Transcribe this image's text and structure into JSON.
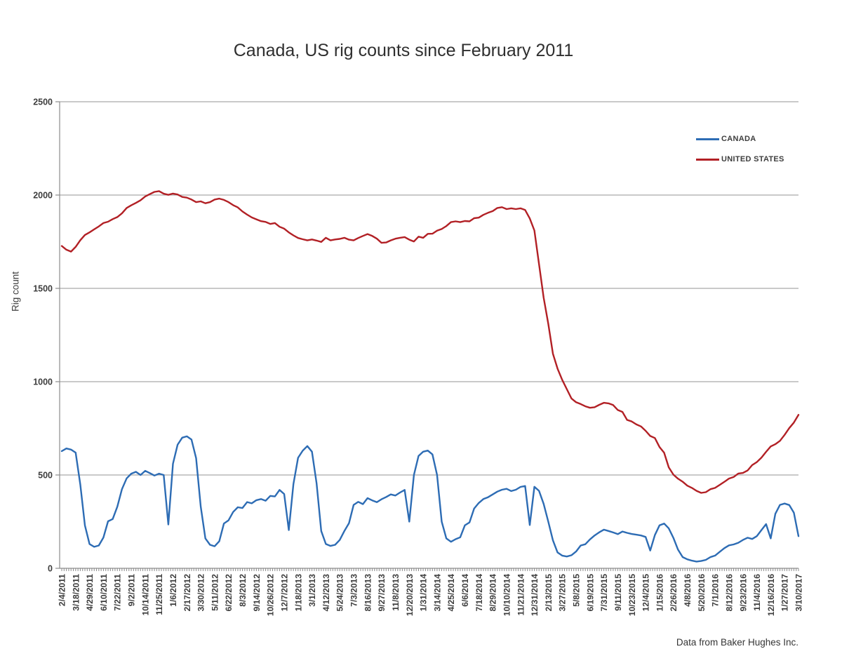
{
  "title": "Canada, US rig counts since February 2011",
  "source_note": "Data from Baker Hughes Inc.",
  "y_axis": {
    "label": "Rig count"
  },
  "legend": [
    {
      "label": "CANADA",
      "color": "#2d6cb4"
    },
    {
      "label": "UNITED STATES",
      "color": "#b22025"
    }
  ],
  "chart_data": {
    "type": "line",
    "title": "Canada, US rig counts since February 2011",
    "xlabel": "",
    "ylabel": "Rig count",
    "ylim": [
      0,
      2500
    ],
    "y_ticks": [
      0,
      500,
      1000,
      1500,
      2000,
      2500
    ],
    "grid": "horizontal",
    "legend_position": "upper right inside",
    "x_unit": "weekly rig count, sampled every 2 weeks from 2/4/2011 to 3/10/2017",
    "x_step_weeks": 2,
    "x_tick_interval_weeks": 6,
    "x_tick_labels": [
      "2/4/2011",
      "3/18/2011",
      "4/29/2011",
      "6/10/2011",
      "7/22/2011",
      "9/2/2011",
      "10/14/2011",
      "11/25/2011",
      "1/6/2012",
      "2/17/2012",
      "3/30/2012",
      "5/11/2012",
      "6/22/2012",
      "8/3/2012",
      "9/14/2012",
      "10/26/2012",
      "12/7/2012",
      "1/18/2013",
      "3/1/2013",
      "4/12/2013",
      "5/24/2013",
      "7/3/2013",
      "8/16/2013",
      "9/27/2013",
      "11/8/2013",
      "12/20/2013",
      "1/31/2014",
      "3/14/2014",
      "4/25/2014",
      "6/6/2014",
      "7/18/2014",
      "8/29/2014",
      "10/10/2014",
      "11/21/2014",
      "12/31/2014",
      "2/13/2015",
      "3/27/2015",
      "5/8/2015",
      "6/19/2015",
      "7/31/2015",
      "9/11/2015",
      "10/23/2015",
      "12/4/2015",
      "1/15/2016",
      "2/26/2016",
      "4/8/2016",
      "5/20/2016",
      "7/1/2016",
      "8/12/2016",
      "9/23/2016",
      "11/4/2016",
      "12/16/2016",
      "1/27/2017",
      "3/10/2017"
    ],
    "series": [
      {
        "name": "CANADA",
        "color": "#2d6cb4",
        "values": [
          628,
          642,
          636,
          620,
          450,
          230,
          130,
          115,
          122,
          165,
          252,
          264,
          330,
          424,
          482,
          507,
          517,
          500,
          522,
          510,
          497,
          507,
          500,
          235,
          560,
          662,
          700,
          707,
          690,
          590,
          330,
          160,
          126,
          118,
          145,
          240,
          257,
          302,
          327,
          323,
          355,
          348,
          365,
          371,
          362,
          388,
          385,
          420,
          398,
          205,
          452,
          592,
          630,
          655,
          625,
          455,
          200,
          130,
          120,
          126,
          152,
          200,
          242,
          340,
          356,
          344,
          376,
          364,
          354,
          370,
          382,
          396,
          390,
          406,
          420,
          250,
          500,
          602,
          625,
          631,
          610,
          500,
          250,
          160,
          142,
          156,
          166,
          230,
          246,
          320,
          350,
          371,
          381,
          396,
          411,
          421,
          426,
          414,
          421,
          436,
          441,
          232,
          437,
          415,
          345,
          250,
          150,
          85,
          68,
          63,
          70,
          90,
          122,
          129,
          155,
          176,
          193,
          207,
          200,
          192,
          183,
          197,
          190,
          184,
          180,
          176,
          168,
          95,
          178,
          230,
          240,
          214,
          163,
          100,
          60,
          48,
          41,
          36,
          39,
          45,
          60,
          68,
          88,
          108,
          123,
          128,
          137,
          152,
          164,
          157,
          172,
          205,
          237,
          160,
          292,
          340,
          347,
          339,
          298,
          172
        ]
      },
      {
        "name": "UNITED STATES",
        "color": "#b22025",
        "values": [
          1727,
          1707,
          1697,
          1722,
          1758,
          1786,
          1800,
          1816,
          1832,
          1850,
          1857,
          1871,
          1882,
          1902,
          1931,
          1945,
          1958,
          1972,
          1992,
          2005,
          2017,
          2021,
          2007,
          2001,
          2008,
          2003,
          1990,
          1986,
          1976,
          1962,
          1966,
          1956,
          1962,
          1976,
          1981,
          1974,
          1962,
          1946,
          1934,
          1912,
          1895,
          1880,
          1870,
          1860,
          1856,
          1845,
          1850,
          1830,
          1820,
          1800,
          1784,
          1770,
          1763,
          1757,
          1762,
          1756,
          1749,
          1771,
          1757,
          1762,
          1765,
          1771,
          1761,
          1757,
          1770,
          1781,
          1791,
          1781,
          1766,
          1744,
          1746,
          1757,
          1766,
          1771,
          1775,
          1761,
          1751,
          1777,
          1771,
          1792,
          1793,
          1809,
          1818,
          1834,
          1855,
          1859,
          1855,
          1861,
          1859,
          1876,
          1879,
          1894,
          1905,
          1914,
          1931,
          1935,
          1925,
          1929,
          1925,
          1929,
          1920,
          1875,
          1810,
          1630,
          1450,
          1310,
          1150,
          1070,
          1010,
          960,
          910,
          890,
          880,
          868,
          860,
          863,
          876,
          887,
          884,
          875,
          848,
          838,
          795,
          787,
          771,
          760,
          737,
          709,
          698,
          650,
          619,
          541,
          502,
          480,
          464,
          443,
          431,
          415,
          404,
          408,
          424,
          431,
          447,
          463,
          481,
          489,
          508,
          511,
          524,
          553,
          569,
          593,
          624,
          653,
          665,
          683,
          715,
          751,
          781,
          822
        ]
      }
    ],
    "source": "Data from Baker Hughes Inc."
  }
}
